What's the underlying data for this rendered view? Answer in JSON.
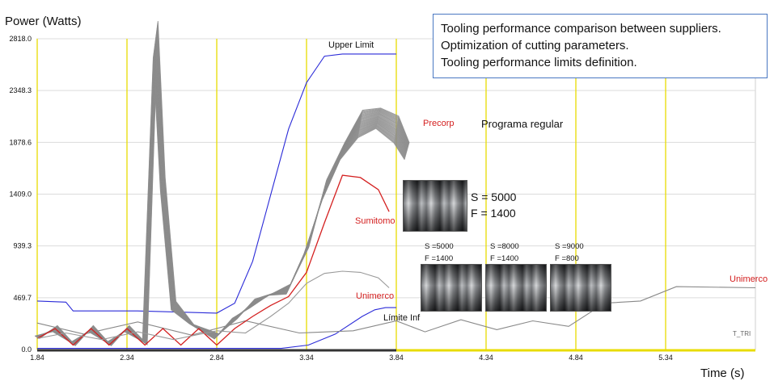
{
  "chart_data": {
    "type": "line",
    "ylabel": "Power (Watts)",
    "xlabel": "Time (s)",
    "xlim": [
      1.84,
      5.84
    ],
    "ylim": [
      0.0,
      2818.0
    ],
    "x_ticks": [
      "1.84",
      "2.34",
      "2.84",
      "3.34",
      "3.84",
      "4.34",
      "4.84",
      "5.34"
    ],
    "y_ticks": [
      "0.0",
      "469.7",
      "939.3",
      "1409.0",
      "1878.6",
      "2348.3",
      "2818.0"
    ],
    "grid": true,
    "vertical_grid_color": "#e8dc00",
    "series": [
      {
        "name": "Upper Limit",
        "color": "#2b2bd8",
        "x": [
          1.84,
          2.0,
          2.04,
          2.4,
          2.84,
          2.94,
          3.04,
          3.14,
          3.24,
          3.34,
          3.44,
          3.54,
          3.84
        ],
        "y": [
          440,
          430,
          350,
          350,
          330,
          420,
          800,
          1400,
          2000,
          2420,
          2660,
          2680,
          2680
        ]
      },
      {
        "name": "Límite Inf",
        "color": "#2b2bd8",
        "x": [
          1.84,
          3.2,
          3.35,
          3.5,
          3.65,
          3.72,
          3.78,
          3.84
        ],
        "y": [
          10,
          10,
          40,
          140,
          300,
          360,
          380,
          380
        ]
      },
      {
        "name": "T_TRI",
        "color": "#888888",
        "x": [
          1.84,
          2.1,
          2.4,
          2.7,
          3.0,
          3.3,
          3.6,
          3.84,
          4.0,
          4.2,
          4.4,
          4.6,
          4.8,
          5.0,
          5.2,
          5.4,
          5.84
        ],
        "y": [
          240,
          140,
          250,
          130,
          260,
          150,
          170,
          260,
          160,
          270,
          180,
          260,
          210,
          420,
          440,
          570,
          560
        ]
      },
      {
        "name": "Precorp",
        "color": "#8c8c8c",
        "curves": 30,
        "x": [
          1.84,
          1.94,
          2.04,
          2.14,
          2.24,
          2.34,
          2.44,
          2.5,
          2.54,
          2.6,
          2.7,
          2.84,
          2.94,
          3.04,
          3.14,
          3.24,
          3.34,
          3.44,
          3.54,
          3.64,
          3.74,
          3.84,
          3.9
        ],
        "y": [
          110,
          190,
          50,
          190,
          50,
          190,
          60,
          2820,
          1500,
          400,
          230,
          120,
          280,
          420,
          500,
          550,
          900,
          1450,
          1800,
          2050,
          2100,
          2000,
          1800
        ]
      },
      {
        "name": "Sumitomo",
        "color": "#d42020",
        "x": [
          1.84,
          1.94,
          2.04,
          2.14,
          2.24,
          2.34,
          2.44,
          2.54,
          2.64,
          2.74,
          2.84,
          2.94,
          3.04,
          3.14,
          3.24,
          3.34,
          3.44,
          3.54,
          3.64,
          3.74,
          3.8
        ],
        "y": [
          100,
          190,
          40,
          190,
          40,
          190,
          40,
          190,
          40,
          190,
          40,
          190,
          300,
          400,
          480,
          700,
          1150,
          1580,
          1560,
          1450,
          1250
        ]
      },
      {
        "name": "Unimerco",
        "color": "#999999",
        "x": [
          1.84,
          2.0,
          2.2,
          2.4,
          2.6,
          2.84,
          3.0,
          3.14,
          3.24,
          3.34,
          3.44,
          3.54,
          3.64,
          3.74,
          3.8
        ],
        "y": [
          100,
          150,
          90,
          160,
          90,
          170,
          150,
          300,
          420,
          600,
          690,
          710,
          700,
          650,
          560
        ]
      }
    ],
    "annotations": {
      "upper_limit": "Upper Limit",
      "limite_inf": "Límite Inf",
      "precorp": "Precorp",
      "programa": "Programa regular",
      "sumitomo": "Sumitomo",
      "unimerco_mid": "Unimerco",
      "unimerco_right": "Unimerco",
      "t_tri": "T_TRI"
    }
  },
  "info_box": {
    "line1": "Tooling performance comparison between suppliers.",
    "line2": "Optimization of cutting parameters.",
    "line3": "Tooling performance limits definition."
  },
  "photo_main": {
    "s": "S = 5000",
    "f": "F = 1400"
  },
  "photos_small": [
    {
      "s": "S =5000",
      "f": "F =1400"
    },
    {
      "s": "S =8000",
      "f": "F =1400"
    },
    {
      "s": "S =9000",
      "f": "F =800"
    }
  ]
}
